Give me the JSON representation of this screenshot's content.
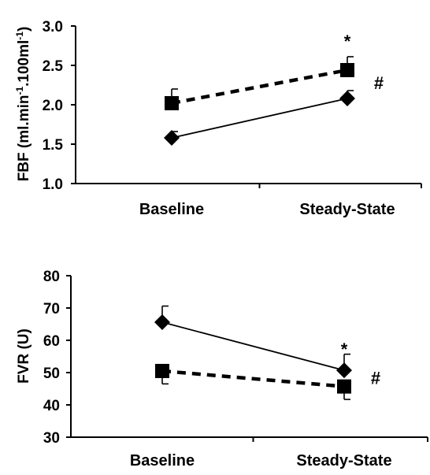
{
  "chart_data": [
    {
      "type": "line",
      "ylabel": {
        "main": "FBF (ml.min",
        "sup1": "-1",
        "mid": ".100ml",
        "sup2": "-1",
        "end": ")"
      },
      "categories": [
        "Baseline",
        "Steady-State"
      ],
      "ylim": [
        1.0,
        3.0
      ],
      "yticks": [
        "1.0",
        "1.5",
        "2.0",
        "2.5",
        "3.0"
      ],
      "series": [
        {
          "marker": "square",
          "line": "dashed",
          "values": [
            2.02,
            2.44
          ],
          "error": [
            0.18,
            0.17
          ]
        },
        {
          "marker": "diamond",
          "line": "solid",
          "values": [
            1.58,
            2.08
          ],
          "error": [
            0.08,
            0.1
          ]
        }
      ],
      "annotations": [
        {
          "text": "*",
          "category": 1,
          "value": 2.87
        },
        {
          "text": "#",
          "category": 1,
          "value": 2.28
        }
      ]
    },
    {
      "type": "line",
      "ylabel": {
        "main": "FVR (U)"
      },
      "categories": [
        "Baseline",
        "Steady-State"
      ],
      "ylim": [
        30,
        80
      ],
      "yticks": [
        "30",
        "40",
        "50",
        "60",
        "70",
        "80"
      ],
      "series": [
        {
          "marker": "diamond",
          "line": "solid",
          "values": [
            65.6,
            50.7
          ],
          "error": [
            5.0,
            5.0
          ]
        },
        {
          "marker": "square",
          "line": "dashed",
          "values": [
            50.5,
            45.7
          ],
          "error": [
            4.0,
            4.0
          ]
        }
      ],
      "annotations": [
        {
          "text": "*",
          "category": 1,
          "value": 58.8
        },
        {
          "text": "#",
          "category": 1,
          "value": 48.4
        }
      ]
    }
  ]
}
